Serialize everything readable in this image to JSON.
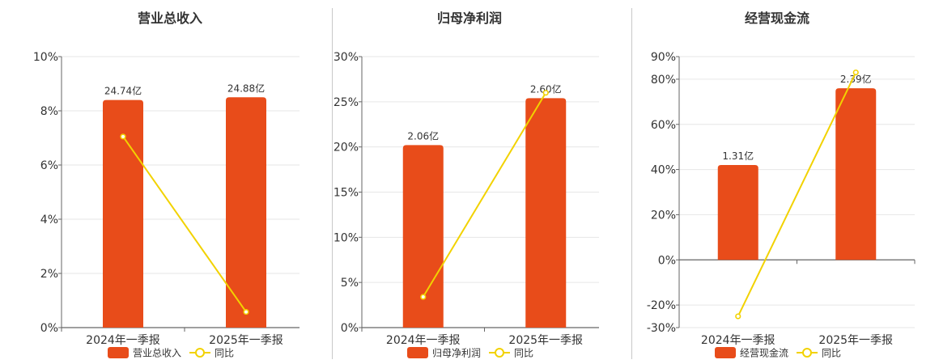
{
  "colors": {
    "bar": "#E84C1A",
    "line": "#F2D200",
    "grid": "#e6e6e6",
    "axis": "#666666"
  },
  "chart_data": [
    {
      "type": "bar",
      "title": "营业总收入",
      "categories": [
        "2024年一季报",
        "2025年一季报"
      ],
      "series": [
        {
          "name": "营业总收入",
          "type": "bar",
          "values": [
            8.4,
            8.5
          ],
          "labels": [
            "24.74亿",
            "24.88亿"
          ]
        },
        {
          "name": "同比",
          "type": "line",
          "values": [
            7.05,
            0.58
          ]
        }
      ],
      "yticks": [
        "0%",
        "2%",
        "4%",
        "6%",
        "8%",
        "10%"
      ],
      "ylim": [
        0,
        10
      ],
      "grid": true,
      "legend": "bottom"
    },
    {
      "type": "bar",
      "title": "归母净利润",
      "categories": [
        "2024年一季报",
        "2025年一季报"
      ],
      "series": [
        {
          "name": "归母净利润",
          "type": "bar",
          "values": [
            20.2,
            25.4
          ],
          "labels": [
            "2.06亿",
            "2.60亿"
          ]
        },
        {
          "name": "同比",
          "type": "line",
          "values": [
            3.4,
            26.0
          ]
        }
      ],
      "yticks": [
        "0%",
        "5%",
        "10%",
        "15%",
        "20%",
        "25%",
        "30%"
      ],
      "ylim": [
        0,
        30
      ],
      "grid": true,
      "legend": "bottom"
    },
    {
      "type": "bar",
      "title": "经营现金流",
      "categories": [
        "2024年一季报",
        "2025年一季报"
      ],
      "series": [
        {
          "name": "经营现金流",
          "type": "bar",
          "values": [
            42,
            76
          ],
          "labels": [
            "1.31亿",
            "2.39亿"
          ]
        },
        {
          "name": "同比",
          "type": "line",
          "values": [
            -25,
            83
          ]
        }
      ],
      "yticks": [
        "-30%",
        "-20%",
        "0%",
        "20%",
        "40%",
        "60%",
        "80%",
        "90%"
      ],
      "ylim": [
        -30,
        90
      ],
      "grid": true,
      "legend": "bottom"
    }
  ]
}
